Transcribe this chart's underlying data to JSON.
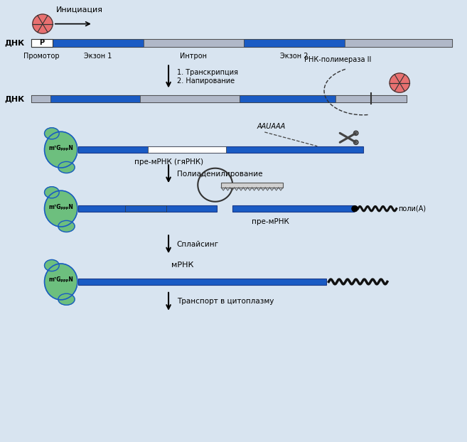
{
  "bg_color": "#d8e4f0",
  "dna_color_gray": "#b0b8c8",
  "dna_color_blue": "#1a5bc4",
  "cap_color": "#6dbf7e",
  "rna_pol_color": "#e87070",
  "label_dna": "ДНК",
  "label_promotor": "Промотор",
  "label_exon1": "Экзон 1",
  "label_intron": "Интрон",
  "label_exon2": "Экзон 2",
  "label_initiation": "Инициация",
  "label_transcription1": "1. Транскрипция",
  "label_transcription2": "2. Напирование",
  "label_rna_pol": "РНК-полимераза II",
  "label_pre_mrna": "пре-мРНК (гяРНК)",
  "label_polyadenylation": "Полиаденилирование",
  "label_pre_mrna2": "пре-мРНК",
  "label_splicing": "Сплайсинг",
  "label_mrna": "мРНК",
  "label_transport": "Транспорт в цитоплазму",
  "label_aauaaa": "AAUAAA",
  "label_poly_a": "поли(A)",
  "label_cap": "m⁷GₚₚₚN"
}
